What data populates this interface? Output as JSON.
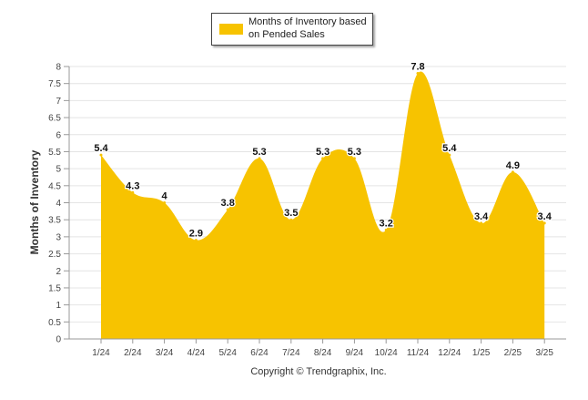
{
  "chart_data": {
    "type": "area",
    "title": "",
    "xlabel": "",
    "ylabel": "Months of Inventory",
    "categories": [
      "1/24",
      "2/24",
      "3/24",
      "4/24",
      "5/24",
      "6/24",
      "7/24",
      "8/24",
      "9/24",
      "10/24",
      "11/24",
      "12/24",
      "1/25",
      "2/25",
      "3/25"
    ],
    "series": [
      {
        "name": "Months of Inventory based on Pended Sales",
        "values": [
          5.4,
          4.3,
          4,
          2.9,
          3.8,
          5.3,
          3.5,
          5.3,
          5.3,
          3.2,
          7.8,
          5.4,
          3.4,
          4.9,
          3.4
        ],
        "labels": [
          "5.4",
          "4.3",
          "4",
          "2.9",
          "3.8",
          "5.3",
          "3.5",
          "5.3",
          "5.3",
          "3.2",
          "7.8",
          "5.4",
          "3.4",
          "4.9",
          "3.4"
        ],
        "color": "#F7C300"
      }
    ],
    "ylim": [
      0,
      8
    ],
    "yticks": [
      "0",
      "0.5",
      "1",
      "1.5",
      "2",
      "2.5",
      "3",
      "3.5",
      "4",
      "4.5",
      "5",
      "5.5",
      "6",
      "6.5",
      "7",
      "7.5",
      "8"
    ],
    "grid": true,
    "legend_position": "top-center"
  },
  "legend": {
    "label": "Months of Inventory based on Pended Sales"
  },
  "footer": {
    "copyright": "Copyright © Trendgraphix, Inc."
  },
  "colors": {
    "area": "#F7C300",
    "grid": "#e4e4e4",
    "axis": "#999999"
  }
}
